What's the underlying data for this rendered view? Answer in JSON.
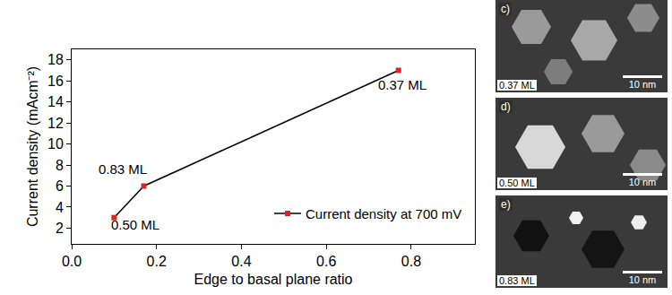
{
  "chart_data": {
    "type": "line",
    "x_label": "Edge to basal plane ratio",
    "y_label": "Current density (mAcm⁻²)",
    "series": [
      {
        "name": "Current density at 700 mV",
        "color": "#d62728",
        "line_color": "#000000",
        "marker": "square",
        "x": [
          0.1,
          0.17,
          0.77
        ],
        "values": [
          3.0,
          6.0,
          17.0
        ]
      }
    ],
    "annotations": [
      {
        "text": "0.50 ML",
        "x": 0.15,
        "y": 2.3
      },
      {
        "text": "0.83 ML",
        "x": 0.12,
        "y": 7.6
      },
      {
        "text": "0.37 ML",
        "x": 0.78,
        "y": 15.6
      }
    ],
    "xlim": [
      0,
      0.95
    ],
    "xticks": [
      {
        "value": 0,
        "label": "0.0"
      },
      {
        "value": 0.2,
        "label": "0.2"
      },
      {
        "value": 0.4,
        "label": "0.4"
      },
      {
        "value": 0.6,
        "label": "0.6"
      },
      {
        "value": 0.8,
        "label": "0.8"
      }
    ],
    "ylim": [
      0.5,
      19
    ],
    "yticks": [
      2,
      4,
      6,
      8,
      10,
      12,
      14,
      16,
      18
    ],
    "grid": false,
    "legend": "lower right"
  },
  "panels": [
    {
      "letter": "c)",
      "label": "0.37 ML",
      "scale": "10 nm"
    },
    {
      "letter": "d)",
      "label": "0.50 ML",
      "scale": "10 nm"
    },
    {
      "letter": "e)",
      "label": "0.83 ML",
      "scale": "10 nm"
    }
  ]
}
